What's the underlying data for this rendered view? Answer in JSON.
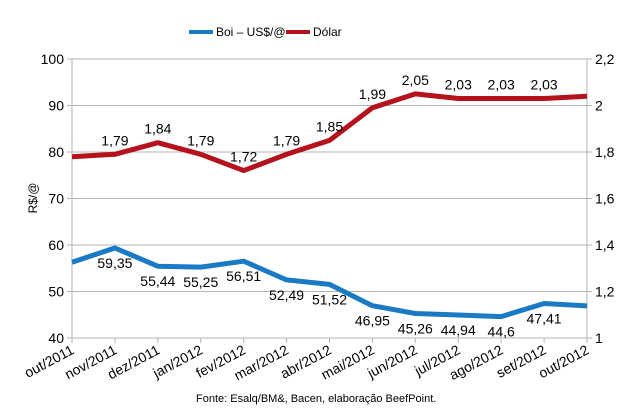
{
  "chart_data": {
    "type": "line",
    "title": "",
    "categories": [
      "out/2011",
      "nov/2011",
      "dez/2011",
      "jan/2012",
      "fev/2012",
      "mar/2012",
      "abr/2012",
      "mai/2012",
      "jun/2012",
      "jul/2012",
      "ago/2012",
      "set/2012",
      "out/2012"
    ],
    "series": [
      {
        "name": "Boi – US$/@",
        "axis": "left",
        "color": "#1a7bc4",
        "values": [
          56.3,
          59.35,
          55.44,
          55.25,
          56.51,
          52.49,
          51.52,
          46.95,
          45.26,
          44.94,
          44.6,
          47.41,
          46.9
        ],
        "labels": [
          "",
          "59,35",
          "55,44",
          "55,25",
          "56,51",
          "52,49",
          "51,52",
          "46,95",
          "45,26",
          "44,94",
          "44,6",
          "47,41",
          ""
        ]
      },
      {
        "name": "Dólar",
        "axis": "right",
        "color": "#b5121b",
        "values": [
          1.78,
          1.79,
          1.84,
          1.79,
          1.72,
          1.79,
          1.85,
          1.99,
          2.05,
          2.03,
          2.03,
          2.03,
          2.04
        ],
        "labels": [
          "",
          "1,79",
          "1,84",
          "1,79",
          "1,72",
          "1,79",
          "1,85",
          "1,99",
          "2,05",
          "2,03",
          "2,03",
          "2,03",
          ""
        ]
      }
    ],
    "ylabel": "R$/@",
    "y2label": "",
    "xlabel": "",
    "ylim": [
      40,
      100
    ],
    "y2lim": [
      1,
      2.2
    ],
    "yticks": [
      40,
      50,
      60,
      70,
      80,
      90,
      100
    ],
    "ytick_labels": [
      "40",
      "50",
      "60",
      "70",
      "80",
      "90",
      "100"
    ],
    "y2ticks": [
      1,
      1.2,
      1.4,
      1.6,
      1.8,
      2,
      2.2
    ],
    "y2tick_labels": [
      "1",
      "1,2",
      "1,4",
      "1,6",
      "1,8",
      "2",
      "2,2"
    ],
    "grid": true,
    "legend_position": "top-center",
    "source": "Fonte: Esalq/BM&, Bacen, elaboração BeefPoint.",
    "colors": {
      "grid": "#b3b3b3",
      "axis": "#b3b3b3"
    }
  }
}
